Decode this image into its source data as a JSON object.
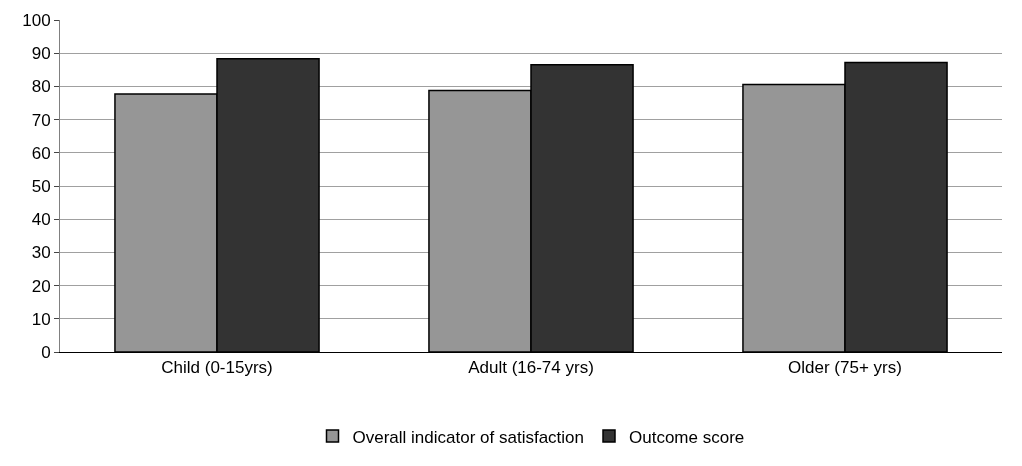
{
  "chart_data": {
    "type": "bar",
    "categories": [
      "Child (0-15yrs)",
      "Adult (16-74 yrs)",
      "Older (75+ yrs)"
    ],
    "series": [
      {
        "name": "Overall indicator of satisfaction",
        "color": "#969696",
        "values": [
          77.7,
          78.8,
          80.6
        ]
      },
      {
        "name": "Outcome score",
        "color": "#333333",
        "values": [
          88.3,
          86.5,
          87.2
        ]
      }
    ],
    "ylim": [
      0,
      100
    ],
    "yticks": [
      0,
      10,
      20,
      30,
      40,
      50,
      60,
      70,
      80,
      90,
      100
    ],
    "grid": "y",
    "legend": "bottom"
  }
}
